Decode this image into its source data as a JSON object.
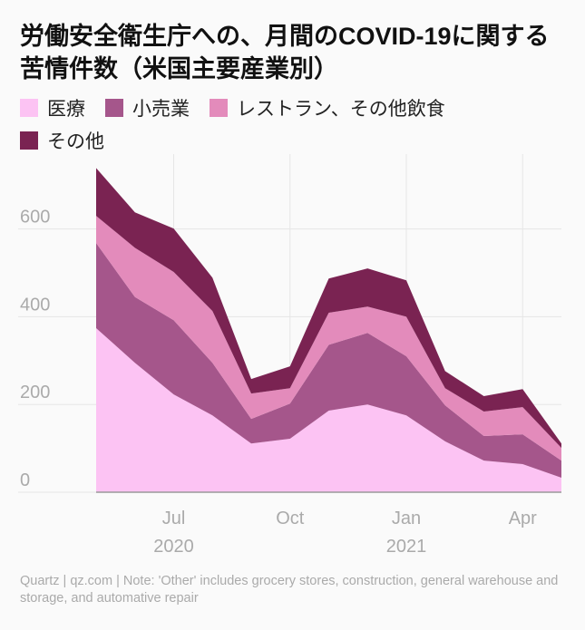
{
  "chart_data": {
    "type": "stacked_area",
    "title": "労働安全衛生庁への、月間のCOVID-19に関する苦情件数（米国主要産業別）",
    "x": [
      "2020-05",
      "2020-06",
      "2020-07",
      "2020-08",
      "2020-09",
      "2020-10",
      "2020-11",
      "2020-12",
      "2021-01",
      "2021-02",
      "2021-03",
      "2021-04",
      "2021-05"
    ],
    "series": [
      {
        "name": "医療",
        "color": "#fcc3f3",
        "values": [
          374,
          295,
          223,
          175,
          111,
          122,
          186,
          200,
          175,
          116,
          72,
          64,
          33
        ]
      },
      {
        "name": "小売業",
        "color": "#a5568b",
        "values": [
          194,
          150,
          169,
          120,
          56,
          80,
          150,
          163,
          135,
          82,
          56,
          68,
          39
        ]
      },
      {
        "name": "レストラン、その他飲食",
        "color": "#e38bbb",
        "values": [
          62,
          112,
          110,
          118,
          58,
          35,
          73,
          60,
          90,
          39,
          56,
          62,
          29
        ]
      },
      {
        "name": "その他",
        "color": "#7a2352",
        "values": [
          109,
          81,
          99,
          76,
          33,
          50,
          78,
          87,
          83,
          39,
          35,
          41,
          10
        ]
      }
    ],
    "xticks": [
      {
        "value": "2020-07",
        "label": "Jul"
      },
      {
        "value": "2020-10",
        "label": "Oct"
      },
      {
        "value": "2021-01",
        "label": "Jan"
      },
      {
        "value": "2021-04",
        "label": "Apr"
      }
    ],
    "year_labels": [
      {
        "value": "2020-07",
        "label": "2020"
      },
      {
        "value": "2021-01",
        "label": "2021"
      }
    ],
    "ylim": [
      0,
      750
    ],
    "yticks": [
      0,
      200,
      400,
      600
    ],
    "grid": true,
    "note": "Quartz | qz.com | Note: 'Other' includes grocery stores, construction, general warehouse and storage, and automative repair"
  }
}
